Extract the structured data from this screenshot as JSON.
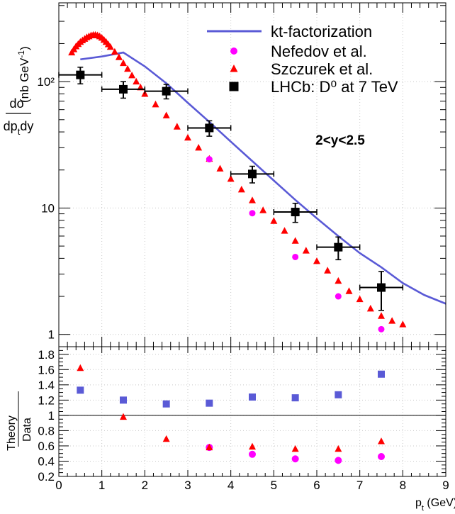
{
  "chart_data": [
    {
      "type": "line",
      "panel": "main",
      "yscale": "log",
      "annotation": "2<y<2.5",
      "ylabel": "dσ/dp_t dy (nb GeV^-1)",
      "xlim": [
        0,
        9
      ],
      "ylim": [
        0.8,
        420
      ],
      "y_ticks": [
        {
          "value": 1,
          "label": "1"
        },
        {
          "value": 10,
          "label": "10"
        },
        {
          "value": 100,
          "label": "10²"
        }
      ],
      "legend": {
        "position": "top-right",
        "entries": [
          {
            "name": "kt-factorization",
            "marker": "line"
          },
          {
            "name": "Nefedov et al.",
            "marker": "circle"
          },
          {
            "name": "Szczurek et al.",
            "marker": "triangle"
          },
          {
            "name": "LHCb: D⁰ at 7 TeV",
            "marker": "square"
          }
        ]
      },
      "series": [
        {
          "name": "kt-factorization",
          "color": "#5a5ad6",
          "x": [
            0.5,
            1.0,
            1.5,
            2.0,
            2.5,
            3.0,
            3.5,
            4.0,
            4.5,
            5.0,
            5.5,
            6.0,
            6.5,
            7.0,
            7.5,
            8.0,
            8.5,
            9.0
          ],
          "y": [
            150,
            158,
            170,
            132,
            97,
            68,
            48,
            33.5,
            23.5,
            16.5,
            11.6,
            8.3,
            6.0,
            4.4,
            3.4,
            2.55,
            2.05,
            1.75
          ]
        },
        {
          "name": "Nefedov et al.",
          "color": "#ff00ff",
          "x": [
            3.5,
            4.5,
            5.5,
            6.5,
            7.5
          ],
          "y": [
            24.3,
            9.1,
            4.1,
            2.0,
            1.1
          ]
        },
        {
          "name": "Szczurek et al.",
          "color": "#ff0000",
          "x": [
            0.3,
            0.35,
            0.4,
            0.45,
            0.5,
            0.55,
            0.6,
            0.65,
            0.7,
            0.75,
            0.8,
            0.85,
            0.9,
            0.95,
            1.0,
            1.05,
            1.1,
            1.15,
            1.2,
            1.3,
            1.4,
            1.5,
            1.6,
            1.7,
            1.8,
            1.9,
            2.0,
            2.25,
            2.5,
            2.75,
            3.0,
            3.25,
            3.5,
            3.75,
            4.0,
            4.25,
            4.5,
            4.75,
            5.0,
            5.25,
            5.5,
            5.75,
            6.0,
            6.25,
            6.5,
            6.75,
            7.0,
            7.25,
            7.5,
            7.75,
            8.0
          ],
          "y": [
            170,
            180,
            190,
            198,
            206,
            212,
            218,
            224,
            228,
            232,
            234,
            234,
            232,
            228,
            222,
            214,
            206,
            197,
            188,
            172,
            156,
            140,
            126,
            112,
            100,
            90,
            80,
            66,
            54,
            44,
            36,
            30,
            24.5,
            20.5,
            17.0,
            14.0,
            11.5,
            9.6,
            7.9,
            6.6,
            5.5,
            4.6,
            3.8,
            3.2,
            2.65,
            2.2,
            1.9,
            1.6,
            1.4,
            1.28,
            1.2
          ]
        },
        {
          "name": "LHCb: D⁰ at 7 TeV",
          "color": "#000000",
          "x": [
            0.5,
            1.5,
            2.5,
            3.5,
            4.5,
            5.5,
            6.5,
            7.5
          ],
          "y": [
            113,
            87,
            84,
            43,
            18.6,
            9.3,
            4.9,
            2.35
          ],
          "x_err": [
            0.5,
            0.5,
            0.5,
            0.5,
            0.5,
            0.5,
            0.5,
            0.5
          ],
          "y_err_low": [
            17,
            13,
            11,
            6,
            2.8,
            1.6,
            1.0,
            0.8
          ],
          "y_err_high": [
            17,
            13,
            11,
            6,
            2.8,
            1.6,
            1.0,
            0.8
          ]
        }
      ]
    },
    {
      "type": "scatter",
      "panel": "ratio",
      "ylabel": "Theory / Data",
      "xlabel": "p_t (GeV)",
      "xlim": [
        0,
        9
      ],
      "ylim": [
        0.2,
        1.9
      ],
      "reference_line": 1,
      "x_ticks": [
        "0",
        "1",
        "2",
        "3",
        "4",
        "5",
        "6",
        "7",
        "8",
        "9"
      ],
      "y_ticks": [
        "0.2",
        "0.4",
        "0.6",
        "0.8",
        "1",
        "1.2",
        "1.4",
        "1.6",
        "1.8"
      ],
      "series": [
        {
          "name": "kt-factorization",
          "color": "#5a5ad6",
          "x": [
            0.5,
            1.5,
            2.5,
            3.5,
            4.5,
            5.5,
            6.5,
            7.5
          ],
          "y": [
            1.33,
            1.2,
            1.15,
            1.16,
            1.24,
            1.23,
            1.27,
            1.54
          ]
        },
        {
          "name": "Nefedov et al.",
          "color": "#ff00ff",
          "x": [
            3.5,
            4.5,
            5.5,
            6.5,
            7.5
          ],
          "y": [
            0.58,
            0.49,
            0.43,
            0.41,
            0.46
          ]
        },
        {
          "name": "Szczurek et al.",
          "color": "#ff0000",
          "x": [
            0.5,
            1.5,
            2.5,
            3.5,
            4.5,
            5.5,
            6.5,
            7.5
          ],
          "y": [
            1.62,
            0.98,
            0.69,
            0.58,
            0.59,
            0.56,
            0.56,
            0.66
          ]
        }
      ]
    }
  ]
}
